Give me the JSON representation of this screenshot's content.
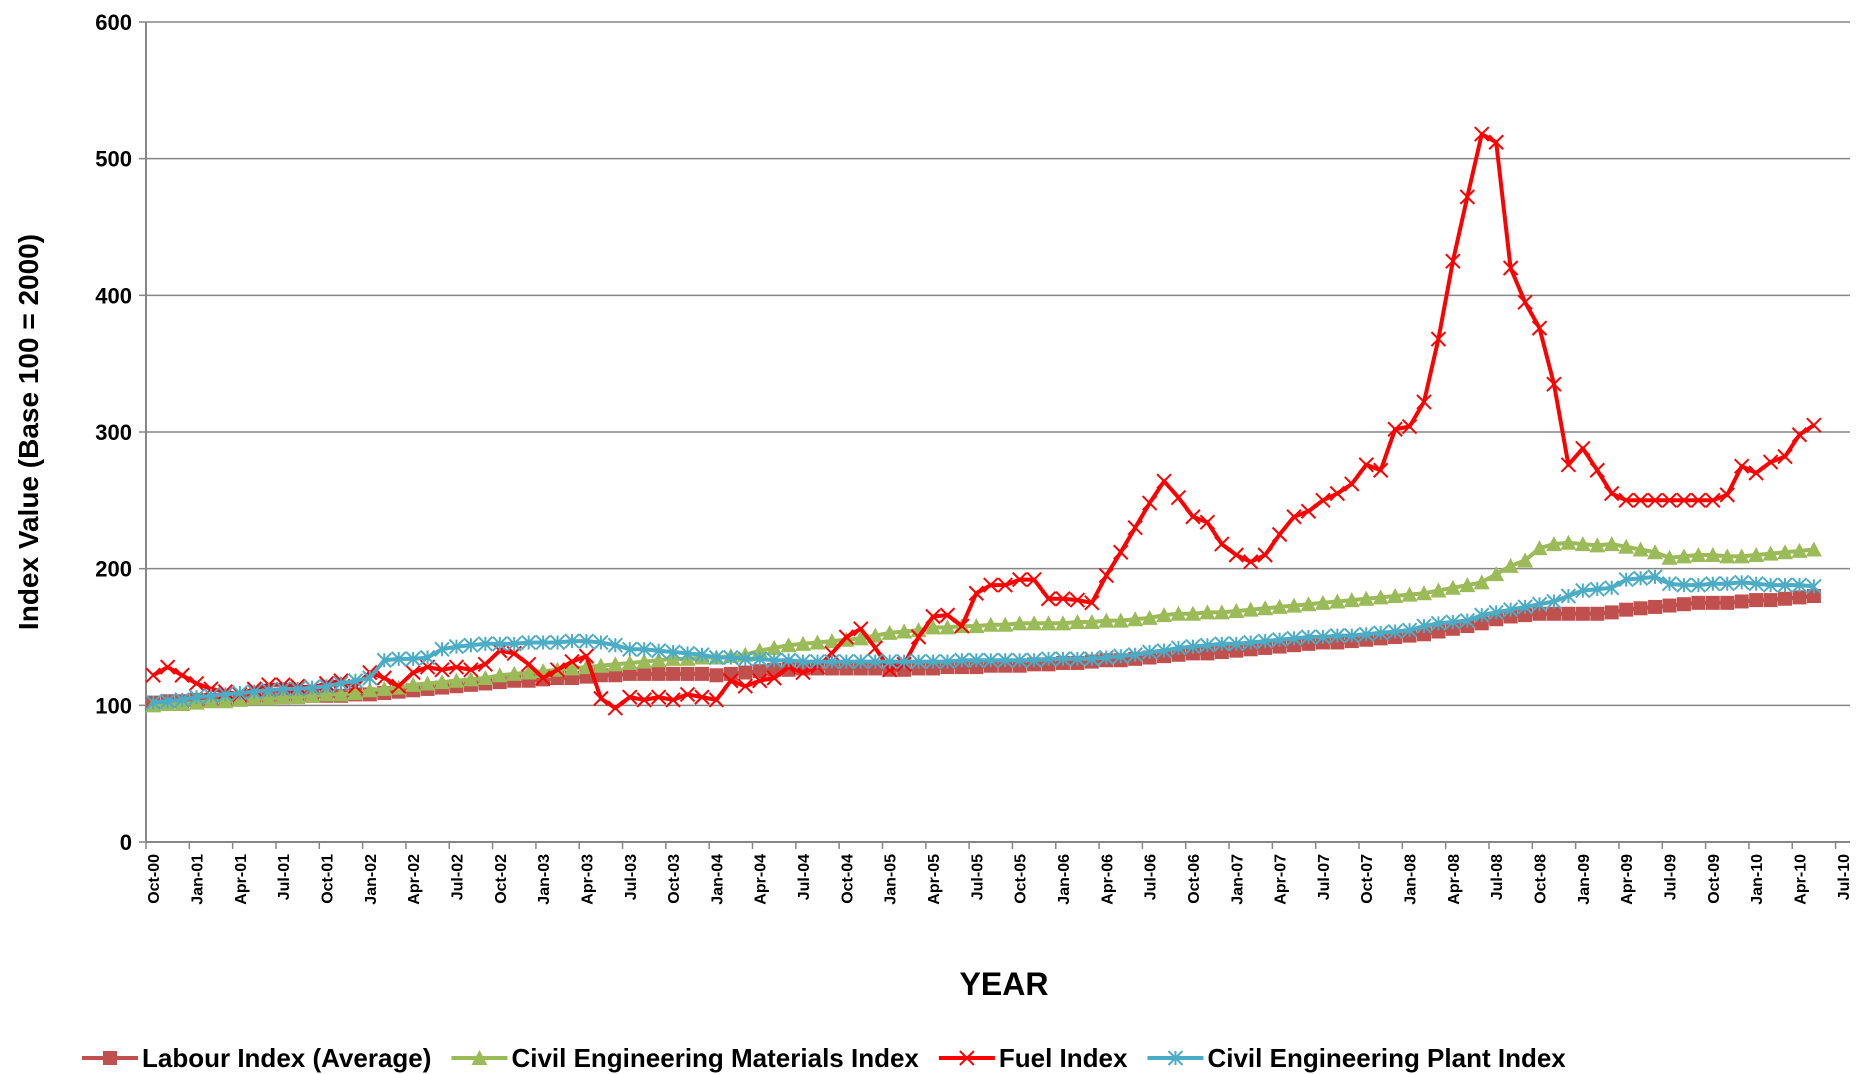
{
  "chart_data": {
    "type": "line",
    "y_label": "Index Value (Base 100 = 2000)",
    "x_label": "YEAR",
    "ylim": [
      0,
      600
    ],
    "yticks": [
      0,
      100,
      200,
      300,
      400,
      500,
      600
    ],
    "grid": true,
    "legend": "bottom",
    "categories": [
      "Oct-00",
      null,
      null,
      "Jan-01",
      null,
      null,
      "Apr-01",
      null,
      null,
      "Jul-01",
      null,
      null,
      "Oct-01",
      null,
      null,
      "Jan-02",
      null,
      null,
      "Apr-02",
      null,
      null,
      "Jul-02",
      null,
      null,
      "Oct-02",
      null,
      null,
      "Jan-03",
      null,
      null,
      "Apr-03",
      null,
      null,
      "Jul-03",
      null,
      null,
      "Oct-03",
      null,
      null,
      "Jan-04",
      null,
      null,
      "Apr-04",
      null,
      null,
      "Jul-04",
      null,
      null,
      "Oct-04",
      null,
      null,
      "Jan-05",
      null,
      null,
      "Apr-05",
      null,
      null,
      "Jul-05",
      null,
      null,
      "Oct-05",
      null,
      null,
      "Jan-06",
      null,
      null,
      "Apr-06",
      null,
      null,
      "Jul-06",
      null,
      null,
      "Oct-06",
      null,
      null,
      "Jan-07",
      null,
      null,
      "Apr-07",
      null,
      null,
      "Jul-07",
      null,
      null,
      "Oct-07",
      null,
      null,
      "Jan-08",
      null,
      null,
      "Apr-08",
      null,
      null,
      "Jul-08",
      null,
      null,
      "Oct-08",
      null,
      null,
      "Jan-09",
      null,
      null,
      "Apr-09",
      null,
      null,
      "Jul-09",
      null,
      null,
      "Oct-09",
      null,
      null,
      "Jan-10",
      null,
      null,
      "Apr-10",
      null,
      null,
      "Jul-10"
    ],
    "series": [
      {
        "name": "Labour Index (Average)",
        "color": "#c0504d",
        "marker": "square",
        "values": [
          102,
          103,
          103,
          104,
          104,
          104,
          105,
          105,
          106,
          106,
          107,
          107,
          107,
          107,
          108,
          108,
          109,
          110,
          111,
          112,
          113,
          114,
          115,
          116,
          117,
          118,
          118,
          119,
          120,
          120,
          121,
          122,
          122,
          123,
          123,
          123,
          123,
          123,
          123,
          122,
          123,
          124,
          125,
          126,
          126,
          127,
          127,
          127,
          127,
          127,
          127,
          126,
          126,
          127,
          127,
          128,
          128,
          128,
          129,
          129,
          129,
          130,
          130,
          131,
          131,
          132,
          133,
          133,
          134,
          135,
          136,
          137,
          138,
          138,
          139,
          140,
          141,
          142,
          143,
          144,
          145,
          146,
          146,
          147,
          148,
          149,
          150,
          151,
          152,
          154,
          156,
          158,
          160,
          163,
          165,
          166,
          167,
          167,
          167,
          167,
          167,
          168,
          170,
          171,
          172,
          173,
          174,
          175,
          175,
          175,
          176,
          177,
          177,
          178,
          179,
          180,
          null,
          null
        ]
      },
      {
        "name": "Civil Engineering Materials Index",
        "color": "#9bbb59",
        "marker": "triangle",
        "values": [
          100,
          101,
          101,
          102,
          103,
          103,
          104,
          105,
          105,
          106,
          106,
          107,
          108,
          108,
          109,
          111,
          112,
          113,
          115,
          116,
          117,
          118,
          119,
          120,
          122,
          123,
          124,
          125,
          126,
          127,
          128,
          129,
          130,
          131,
          132,
          133,
          134,
          134,
          135,
          135,
          136,
          137,
          140,
          142,
          144,
          145,
          146,
          147,
          148,
          149,
          151,
          153,
          154,
          155,
          157,
          157,
          158,
          158,
          159,
          159,
          160,
          160,
          160,
          160,
          161,
          161,
          162,
          162,
          163,
          164,
          166,
          167,
          167,
          168,
          168,
          169,
          170,
          171,
          172,
          173,
          174,
          175,
          176,
          177,
          178,
          179,
          180,
          181,
          182,
          184,
          186,
          188,
          190,
          196,
          202,
          206,
          215,
          218,
          219,
          218,
          217,
          218,
          216,
          214,
          212,
          208,
          209,
          210,
          210,
          209,
          209,
          210,
          211,
          212,
          213,
          214,
          null,
          null
        ]
      },
      {
        "name": "Fuel Index",
        "color": "#ff0000",
        "marker": "x",
        "values": [
          122,
          128,
          122,
          116,
          112,
          110,
          108,
          112,
          115,
          115,
          114,
          113,
          116,
          118,
          114,
          124,
          120,
          114,
          124,
          128,
          126,
          128,
          126,
          130,
          140,
          138,
          130,
          120,
          126,
          132,
          136,
          105,
          98,
          106,
          104,
          106,
          104,
          108,
          106,
          104,
          118,
          114,
          118,
          120,
          128,
          124,
          128,
          138,
          150,
          156,
          142,
          126,
          130,
          150,
          165,
          166,
          158,
          182,
          188,
          188,
          192,
          192,
          178,
          178,
          177,
          175,
          195,
          212,
          230,
          248,
          264,
          252,
          238,
          234,
          218,
          210,
          205,
          210,
          225,
          238,
          242,
          250,
          255,
          262,
          276,
          272,
          302,
          304,
          322,
          368,
          425,
          472,
          518,
          512,
          420,
          395,
          376,
          335,
          276,
          288,
          272,
          255,
          250,
          250,
          250,
          250,
          250,
          250,
          250,
          254,
          275,
          270,
          278,
          282,
          298,
          305,
          null,
          null
        ]
      },
      {
        "name": "Civil Engineering Plant Index",
        "color": "#4bacc6",
        "marker": "star",
        "values": [
          102,
          103,
          104,
          106,
          107,
          108,
          109,
          110,
          111,
          112,
          112,
          113,
          114,
          116,
          118,
          120,
          133,
          134,
          134,
          135,
          141,
          143,
          144,
          145,
          145,
          145,
          146,
          146,
          146,
          147,
          147,
          146,
          144,
          141,
          141,
          140,
          139,
          138,
          137,
          135,
          135,
          134,
          134,
          133,
          133,
          132,
          132,
          132,
          132,
          132,
          132,
          132,
          132,
          132,
          132,
          132,
          133,
          133,
          133,
          133,
          133,
          133,
          134,
          134,
          134,
          134,
          135,
          136,
          137,
          139,
          140,
          142,
          143,
          144,
          145,
          145,
          146,
          147,
          148,
          149,
          150,
          150,
          151,
          151,
          152,
          153,
          154,
          155,
          158,
          160,
          161,
          162,
          166,
          168,
          170,
          172,
          174,
          176,
          180,
          184,
          185,
          186,
          192,
          193,
          194,
          189,
          188,
          188,
          189,
          189,
          190,
          189,
          188,
          188,
          188,
          187,
          null,
          null
        ]
      }
    ]
  }
}
